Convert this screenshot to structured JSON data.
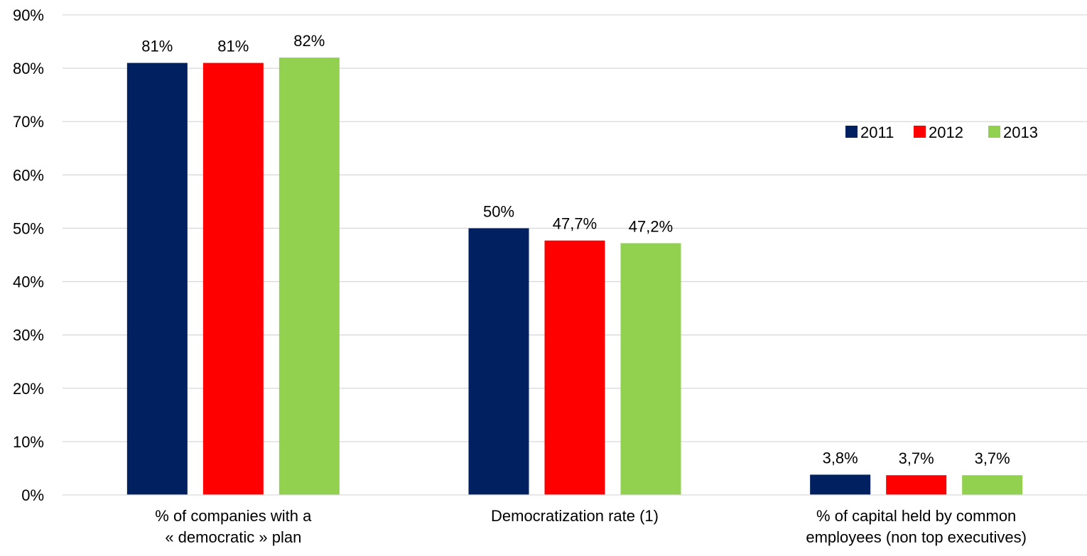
{
  "chart_data": {
    "type": "bar",
    "categories": [
      [
        "% of companies with a",
        "« democratic » plan"
      ],
      [
        "Democratization rate (1)"
      ],
      [
        "% of capital held by common",
        "employees (non top executives)"
      ]
    ],
    "series": [
      {
        "name": "2011",
        "color": "#002060",
        "values": [
          81,
          50,
          3.8
        ],
        "labels": [
          "81%",
          "50%",
          "3,8%"
        ]
      },
      {
        "name": "2012",
        "color": "#FF0000",
        "values": [
          81,
          47.7,
          3.7
        ],
        "labels": [
          "81%",
          "47,7%",
          "3,7%"
        ]
      },
      {
        "name": "2013",
        "color": "#92D050",
        "values": [
          82,
          47.2,
          3.7
        ],
        "labels": [
          "82%",
          "47,2%",
          "3,7%"
        ]
      }
    ],
    "y_ticks": [
      "0%",
      "10%",
      "20%",
      "30%",
      "40%",
      "50%",
      "60%",
      "70%",
      "80%",
      "90%"
    ],
    "ylim": [
      0,
      90
    ],
    "grid": true,
    "legend_position": "right",
    "title": "",
    "xlabel": "",
    "ylabel": ""
  }
}
